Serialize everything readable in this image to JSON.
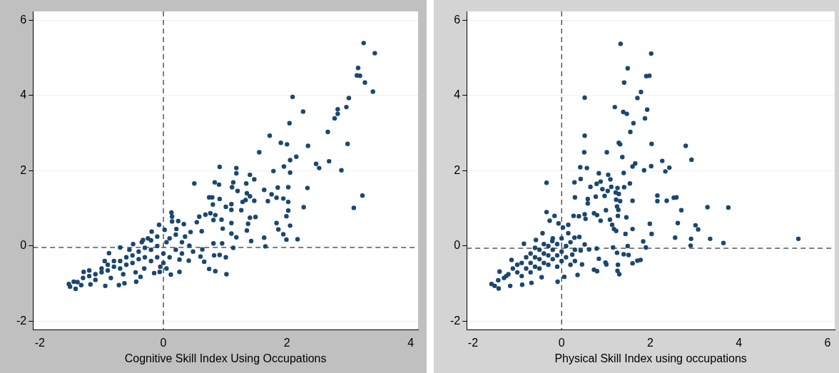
{
  "chart_data": [
    {
      "type": "scatter",
      "xlabel": "Cognitive Skill Index Using Occupations",
      "xlim": [
        -2.11,
        4.12
      ],
      "xticks": [
        -2,
        0,
        2,
        4
      ],
      "ylim": [
        -2.23,
        6.23
      ],
      "yticks": [
        -2,
        0,
        2,
        4,
        6
      ],
      "grid": "y",
      "marker": "circle",
      "legend": false,
      "ref_lines": [
        {
          "axis": "x",
          "value": 0,
          "line_style": "dashed",
          "color": "#000000"
        },
        {
          "axis": "y",
          "value": -0.04,
          "line_style": "dashed",
          "color": "#000000"
        }
      ],
      "series": [
        {
          "color": "#1a476f",
          "x": [
            3.24,
            3.42,
            3.15,
            3.13,
            3.18,
            3.26,
            3.39,
            2.09,
            3.0,
            2.26,
            2.82,
            2.82,
            2.77,
            2.96,
            2.04,
            2.66,
            1.72,
            1.9,
            2.0,
            2.98,
            2.34,
            1.55,
            2.15,
            2.05,
            2.47,
            2.52,
            2.68,
            1.95,
            2.88,
            2.05,
            1.78,
            0.91,
            1.18,
            1.18,
            1.4,
            1.47,
            0.5,
            0.83,
            0.9,
            1.13,
            1.34,
            1.11,
            1.85,
            2.02,
            2.33,
            1.63,
            1.2,
            1.35,
            1.75,
            3.22,
            0.74,
            0.79,
            1.83,
            1.4,
            0.91,
            1.94,
            1.33,
            1.47,
            1.69,
            2.02,
            1.28,
            0.8,
            1.1,
            1.01,
            2.27,
            3.08,
            1.1,
            2.02,
            1.26,
            0.13,
            0.14,
            0.58,
            0.68,
            0.76,
            0.84,
            1.99,
            1.49,
            1.4,
            0.94,
            0.81,
            0.14,
            0.24,
            0.33,
            -0.07,
            0.54,
            1.1,
            1.83,
            1.37,
            2.05,
            1.86,
            1.35,
            0.96,
            -0.19,
            0.02,
            0.21,
            0.44,
            0.62,
            1.94,
            1.1,
            1.18,
            1.63,
            2.17,
            1.99,
            1.42,
            -0.33,
            0.3,
            0.81,
            1.65,
            1.13,
            0.95,
            0.42,
            0.63,
            0.48,
            0.91,
            1.01,
            0.82,
            0.6,
            0.66,
            0.41,
            0.26,
            0.74,
            0.84,
            1.02,
            0.26,
            0.12,
            -0.06,
            -0.15,
            -0.31,
            -0.37,
            -0.44,
            -0.63,
            -0.72,
            -0.94,
            -1.18,
            -1.29,
            -1.42,
            -1.53,
            -1.51,
            -1.45,
            -1.39,
            -1.33,
            -0.88,
            -0.7,
            -0.49,
            -1.3,
            -1.2,
            -1.1,
            -1.0,
            -1.0,
            -0.9,
            -0.9,
            -0.8,
            -0.8,
            -0.7,
            -0.7,
            -0.6,
            -0.6,
            -0.5,
            -0.5,
            -0.4,
            -0.4,
            -0.3,
            -0.3,
            -0.2,
            -0.2,
            -0.2,
            -0.1,
            -0.1,
            -0.1,
            0,
            0,
            0.05,
            0.1,
            0.1,
            0.2,
            0.2,
            0.3,
            0.35,
            -1.1,
            -0.85,
            -0.65,
            -0.45,
            -1.2,
            -0.95,
            -0.55,
            -0.35,
            -0.25,
            0.05,
            -0.05
          ],
          "values": [
            5.39,
            5.12,
            4.73,
            4.53,
            4.52,
            4.34,
            4.1,
            3.96,
            3.93,
            3.57,
            3.63,
            3.51,
            3.39,
            3.69,
            3.26,
            3.03,
            2.93,
            2.74,
            2.7,
            2.71,
            2.66,
            2.49,
            2.37,
            2.28,
            2.18,
            2.07,
            2.25,
            2.11,
            2.01,
            1.95,
            1.99,
            2.1,
            2.07,
            1.93,
            1.89,
            1.77,
            1.66,
            1.69,
            1.63,
            1.69,
            1.66,
            1.56,
            1.55,
            1.56,
            1.54,
            1.49,
            1.46,
            1.4,
            1.37,
            1.34,
            1.29,
            1.29,
            1.28,
            1.32,
            1.25,
            1.26,
            1.22,
            1.2,
            1.19,
            1.17,
            1.17,
            1.1,
            1.11,
            1.04,
            1.03,
            1.01,
            0.96,
            0.94,
            0.95,
            0.89,
            0.78,
            0.78,
            0.83,
            0.87,
            0.82,
            0.79,
            0.77,
            0.75,
            0.7,
            0.69,
            0.65,
            0.66,
            0.58,
            0.56,
            0.63,
            0.61,
            0.61,
            0.59,
            0.54,
            0.44,
            0.41,
            0.46,
            0.38,
            0.43,
            0.45,
            0.37,
            0.39,
            0.31,
            0.33,
            0.23,
            0.22,
            0.18,
            0.17,
            0.13,
            0.16,
            0.1,
            0.07,
            -0.01,
            -0.05,
            0.07,
            0.01,
            -0.09,
            -0.15,
            -0.24,
            -0.3,
            -0.25,
            -0.28,
            -0.42,
            -0.39,
            -0.36,
            -0.61,
            -0.67,
            -0.75,
            -0.69,
            -0.76,
            -0.69,
            -0.72,
            -0.6,
            -0.82,
            -0.95,
            -0.99,
            -1.04,
            -1.06,
            -1.02,
            -0.69,
            -1.14,
            -1.01,
            -1.08,
            -0.95,
            -0.96,
            -1.04,
            -0.19,
            -0.04,
            0.05,
            -0.85,
            -0.8,
            -0.75,
            -0.7,
            -0.6,
            -0.65,
            -0.5,
            -0.55,
            -0.4,
            -0.6,
            -0.4,
            -0.5,
            -0.3,
            -0.45,
            -0.25,
            -0.35,
            -0.15,
            -0.3,
            -0.05,
            -0.4,
            -0.1,
            0.15,
            -0.3,
            0,
            0.25,
            -0.45,
            -0.2,
            0.1,
            -0.3,
            0.2,
            -0.1,
            0.3,
            -0.2,
            0.25,
            -0.9,
            -0.85,
            -0.75,
            -0.7,
            -0.65,
            -0.4,
            -0.1,
            0.1,
            0.2,
            -0.6,
            -0.55
          ]
        }
      ]
    },
    {
      "type": "scatter",
      "xlabel": "Physical Skill Index using occupations",
      "xlim": [
        -2.14,
        6.16
      ],
      "xticks": [
        -2,
        0,
        2,
        4,
        6
      ],
      "ylim": [
        -2.23,
        6.23
      ],
      "yticks": [
        -2,
        0,
        2,
        4,
        6
      ],
      "grid": "y",
      "marker": "circle",
      "legend": false,
      "ref_lines": [
        {
          "axis": "x",
          "value": 0,
          "line_style": "dashed",
          "color": "#000000"
        },
        {
          "axis": "y",
          "value": -0.06,
          "line_style": "dashed",
          "color": "#000000"
        }
      ],
      "series": [
        {
          "color": "#1a476f",
          "x": [
            1.33,
            2.02,
            1.49,
            1.91,
            1.98,
            1.41,
            1.79,
            0.52,
            1.71,
            1.2,
            1.93,
            1.39,
            1.47,
            1.88,
            1.62,
            1.55,
            0.52,
            1.29,
            1.32,
            2.03,
            2.8,
            0.51,
            1.02,
            2.93,
            1.37,
            2.27,
            1.66,
            1.6,
            2.02,
            2.43,
            0.42,
            0.57,
            1.86,
            2.34,
            0.84,
            1.4,
            1.05,
            1.1,
            0.43,
            -0.34,
            0.29,
            0.88,
            0.79,
            1.54,
            0.65,
            1.12,
            1.26,
            1.41,
            0.92,
            1.04,
            2.16,
            1.22,
            1.29,
            0.3,
            0.97,
            0.77,
            2.53,
            2.59,
            0.59,
            1.23,
            1.32,
            2.16,
            2.37,
            1.6,
            0.59,
            1.25,
            3.29,
            3.76,
            1.28,
            1.0,
            2.7,
            -0.34,
            -0.16,
            0.27,
            0.39,
            0.52,
            0.73,
            1.27,
            1.46,
            0.8,
            1.09,
            -0.27,
            0.54,
            0.88,
            1.99,
            2.62,
            3.02,
            1.14,
            1.6,
            3.08,
            1.18,
            1.23,
            1.44,
            2.03,
            2.56,
            2.92,
            3.35,
            5.34,
            3.65,
            1.84,
            2.91,
            1.9,
            1.49,
            1.16,
            0.79,
            1.4,
            1.51,
            1.25,
            1.78,
            1.71,
            1.6,
            1.27,
            1.26,
            1.3,
            0.8,
            0.73,
            0.99,
            1.01,
            0.84,
            0.46,
            0.36,
            0.06,
            -0.09,
            0.24,
            0.43,
            0.62,
            0.52,
            0.4,
            0.15,
            0.03,
            0.15,
            -0.07,
            0.29,
            -1.58,
            -1.51,
            -1.42,
            -1.4,
            -1.16,
            -0.89,
            -0.68,
            -0.45,
            -1.43,
            -1.25,
            -1.13,
            -0.85,
            -0.58,
            -0.43,
            -0.21,
            -1.3,
            -1.2,
            -1.1,
            -1.0,
            -1.0,
            -0.9,
            -0.9,
            -0.8,
            -0.8,
            -0.7,
            -0.7,
            -0.7,
            -0.6,
            -0.6,
            -0.6,
            -0.5,
            -0.5,
            -0.5,
            -0.4,
            -0.4,
            -0.4,
            -0.3,
            -0.3,
            -0.3,
            -0.2,
            -0.2,
            -0.2,
            -0.1,
            -0.1,
            -0.1,
            0,
            0,
            0,
            0.1,
            0.1,
            0.2,
            0.2,
            0.3,
            0.3
          ],
          "values": [
            5.37,
            5.11,
            4.72,
            4.51,
            4.52,
            4.34,
            4.09,
            3.94,
            3.93,
            3.69,
            3.62,
            3.56,
            3.51,
            3.39,
            3.26,
            3.03,
            2.93,
            2.74,
            2.7,
            2.71,
            2.66,
            2.49,
            2.49,
            2.29,
            2.36,
            2.26,
            2.19,
            2.11,
            2.12,
            2.08,
            2.09,
            2.07,
            2.01,
            1.98,
            1.93,
            1.94,
            1.89,
            1.77,
            1.78,
            1.68,
            1.69,
            1.71,
            1.65,
            1.66,
            1.57,
            1.57,
            1.54,
            1.56,
            1.51,
            1.46,
            1.34,
            1.42,
            1.38,
            1.29,
            1.33,
            1.31,
            1.28,
            1.29,
            1.25,
            1.23,
            1.19,
            1.19,
            1.2,
            1.2,
            1.13,
            1.05,
            1.03,
            1.02,
            0.96,
            0.95,
            0.95,
            0.9,
            0.8,
            0.8,
            0.79,
            0.84,
            0.87,
            0.8,
            0.76,
            0.82,
            0.7,
            0.67,
            0.72,
            0.67,
            0.59,
            0.61,
            0.55,
            0.56,
            0.45,
            0.44,
            0.45,
            0.4,
            0.32,
            0.32,
            0.22,
            0.19,
            0.19,
            0.19,
            0.08,
            0.12,
            0.01,
            -0.04,
            0.0,
            -0.04,
            -0.07,
            -0.22,
            -0.24,
            -0.18,
            -0.37,
            -0.39,
            -0.46,
            -0.5,
            -0.66,
            -0.75,
            -0.67,
            -0.63,
            -0.44,
            -0.49,
            -0.34,
            -0.49,
            -0.77,
            -0.82,
            -0.95,
            -0.23,
            -0.12,
            -0.09,
            0.04,
            0.24,
            0.34,
            0.49,
            0.56,
            0.6,
            0.22,
            -1.01,
            -1.06,
            -1.13,
            -0.68,
            -1.06,
            -1.03,
            -0.98,
            -0.83,
            -0.91,
            -0.8,
            -0.37,
            0.06,
            0.16,
            0.34,
            0.13,
            -0.85,
            -0.75,
            -0.6,
            -0.7,
            -0.5,
            -0.8,
            -0.45,
            -0.6,
            -0.3,
            -0.7,
            -0.45,
            -0.2,
            -0.55,
            -0.3,
            -0.05,
            -0.6,
            -0.35,
            -0.1,
            -0.45,
            -0.2,
            0.05,
            -0.5,
            -0.25,
            0,
            -0.35,
            -0.1,
            0.2,
            -0.55,
            -0.25,
            0.05,
            -0.4,
            -0.15,
            0.2,
            -0.3,
            0,
            -0.5,
            0.1,
            -0.1,
            -0.4
          ]
        }
      ]
    }
  ]
}
